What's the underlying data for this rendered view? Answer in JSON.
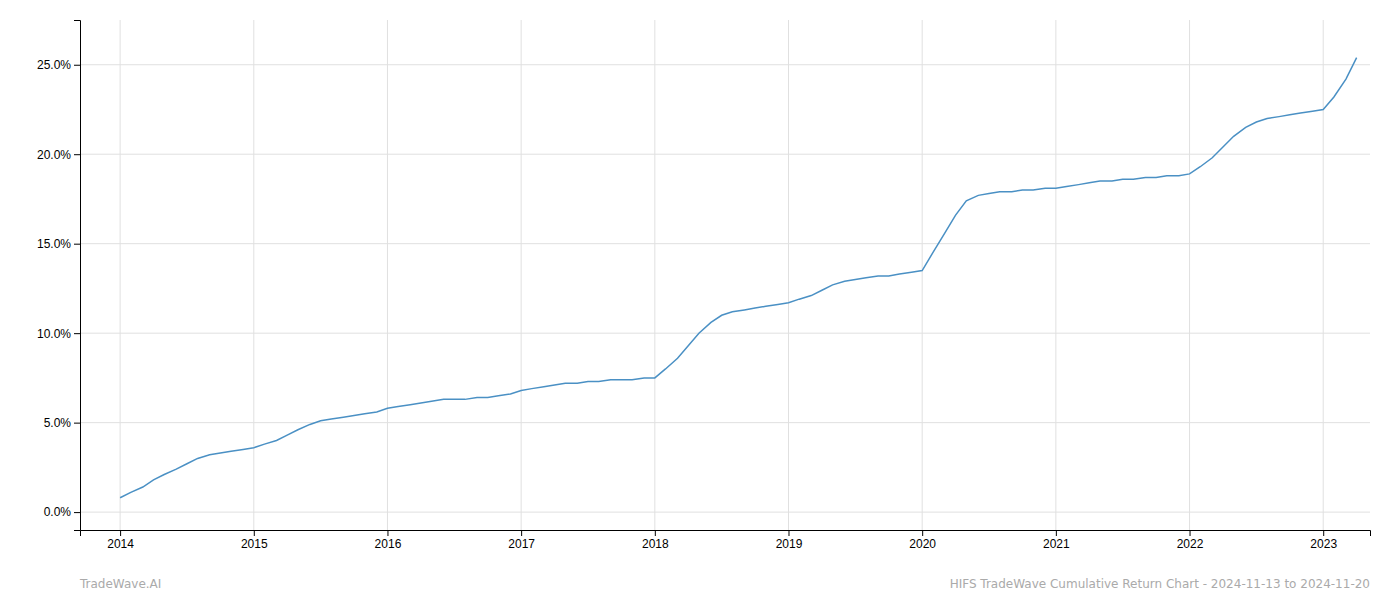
{
  "chart_data": {
    "type": "line",
    "x": [
      2014.0,
      2014.08,
      2014.17,
      2014.25,
      2014.33,
      2014.42,
      2014.5,
      2014.58,
      2014.67,
      2014.75,
      2014.83,
      2014.92,
      2015.0,
      2015.08,
      2015.17,
      2015.25,
      2015.33,
      2015.42,
      2015.5,
      2015.58,
      2015.67,
      2015.75,
      2015.83,
      2015.92,
      2016.0,
      2016.08,
      2016.17,
      2016.25,
      2016.33,
      2016.42,
      2016.5,
      2016.58,
      2016.67,
      2016.75,
      2016.83,
      2016.92,
      2017.0,
      2017.08,
      2017.17,
      2017.25,
      2017.33,
      2017.42,
      2017.5,
      2017.58,
      2017.67,
      2017.75,
      2017.83,
      2017.92,
      2018.0,
      2018.08,
      2018.17,
      2018.25,
      2018.33,
      2018.42,
      2018.5,
      2018.58,
      2018.67,
      2018.75,
      2018.83,
      2018.92,
      2019.0,
      2019.08,
      2019.17,
      2019.25,
      2019.33,
      2019.42,
      2019.5,
      2019.58,
      2019.67,
      2019.75,
      2019.83,
      2019.92,
      2020.0,
      2020.08,
      2020.17,
      2020.25,
      2020.33,
      2020.42,
      2020.5,
      2020.58,
      2020.67,
      2020.75,
      2020.83,
      2020.92,
      2021.0,
      2021.08,
      2021.17,
      2021.25,
      2021.33,
      2021.42,
      2021.5,
      2021.58,
      2021.67,
      2021.75,
      2021.83,
      2021.92,
      2022.0,
      2022.08,
      2022.17,
      2022.25,
      2022.33,
      2022.42,
      2022.5,
      2022.58,
      2022.67,
      2022.75,
      2022.83,
      2022.92,
      2023.0,
      2023.08,
      2023.17,
      2023.25
    ],
    "values": [
      0.008,
      0.011,
      0.014,
      0.018,
      0.021,
      0.024,
      0.027,
      0.03,
      0.032,
      0.033,
      0.034,
      0.035,
      0.036,
      0.038,
      0.04,
      0.043,
      0.046,
      0.049,
      0.051,
      0.052,
      0.053,
      0.054,
      0.055,
      0.056,
      0.058,
      0.059,
      0.06,
      0.061,
      0.062,
      0.063,
      0.063,
      0.063,
      0.064,
      0.064,
      0.065,
      0.066,
      0.068,
      0.069,
      0.07,
      0.071,
      0.072,
      0.072,
      0.073,
      0.073,
      0.074,
      0.074,
      0.074,
      0.075,
      0.075,
      0.08,
      0.086,
      0.093,
      0.1,
      0.106,
      0.11,
      0.112,
      0.113,
      0.114,
      0.115,
      0.116,
      0.117,
      0.119,
      0.121,
      0.124,
      0.127,
      0.129,
      0.13,
      0.131,
      0.132,
      0.132,
      0.133,
      0.134,
      0.135,
      0.145,
      0.156,
      0.166,
      0.174,
      0.177,
      0.178,
      0.179,
      0.179,
      0.18,
      0.18,
      0.181,
      0.181,
      0.182,
      0.183,
      0.184,
      0.185,
      0.185,
      0.186,
      0.186,
      0.187,
      0.187,
      0.188,
      0.188,
      0.189,
      0.193,
      0.198,
      0.204,
      0.21,
      0.215,
      0.218,
      0.22,
      0.221,
      0.222,
      0.223,
      0.224,
      0.225,
      0.232,
      0.242,
      0.254
    ],
    "color": "#4a90c4",
    "xlim": [
      2013.7,
      2023.35
    ],
    "xticks": [
      2014,
      2015,
      2016,
      2017,
      2018,
      2019,
      2020,
      2021,
      2022,
      2023
    ],
    "ylim": [
      -0.01,
      0.275
    ],
    "yticks": [
      {
        "value": 0.0,
        "label": "0.0%"
      },
      {
        "value": 0.05,
        "label": "5.0%"
      },
      {
        "value": 0.1,
        "label": "10.0%"
      },
      {
        "value": 0.15,
        "label": "15.0%"
      },
      {
        "value": 0.2,
        "label": "20.0%"
      },
      {
        "value": 0.25,
        "label": "25.0%"
      }
    ],
    "grid": true,
    "annotations": [
      "TradeWave.AI",
      "HIFS TradeWave Cumulative Return Chart - 2024-11-13 to 2024-11-20"
    ]
  }
}
